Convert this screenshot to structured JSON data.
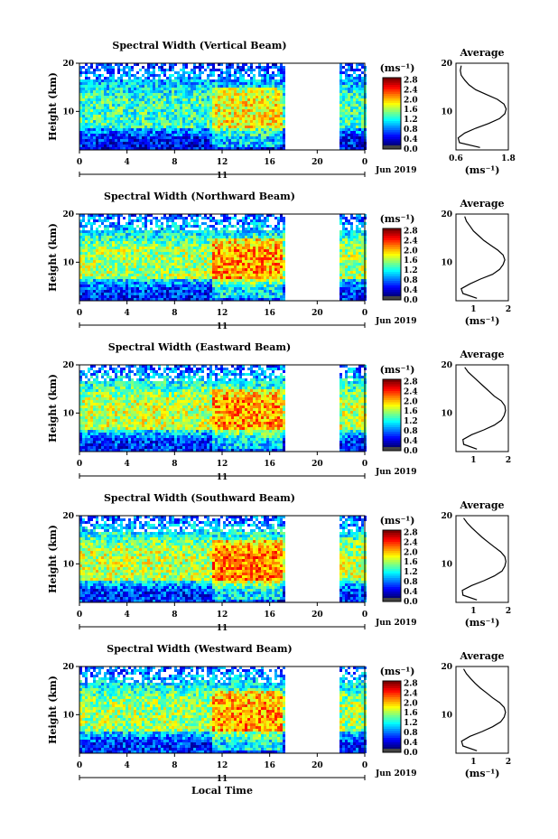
{
  "figure": {
    "date_label": "Jun 2019",
    "day_label": "11",
    "xlabel": "Local Time",
    "ylabel": "Height (km)",
    "unit_label": "(ms⁻¹)",
    "avg_title": "Average",
    "colorbar_ticks": [
      "0.0",
      "0.4",
      "0.8",
      "1.2",
      "1.6",
      "2.0",
      "2.4",
      "2.8"
    ],
    "x_ticks": [
      "0",
      "4",
      "8",
      "12",
      "16",
      "20",
      "0"
    ],
    "y_ticks": [
      "20",
      "10"
    ]
  },
  "chart_data": [
    {
      "type": "heatmap",
      "title": "Spectral Width (Vertical Beam)",
      "x": "Local Time (h)",
      "xlim": [
        0,
        24
      ],
      "ylim": [
        2,
        20
      ],
      "ylabel": "Height (km)",
      "color_range": [
        0,
        3.0
      ],
      "color_unit": "ms⁻¹",
      "data_gap_hours": [
        17.2,
        21.8
      ],
      "levels": {
        "low": 0.4,
        "mid": 1.3,
        "peak": 2.0
      },
      "average_profile": {
        "xlabel": "(ms⁻¹)",
        "xlim": [
          0.6,
          1.8
        ],
        "x_ticks": [
          "0.6",
          "1.8"
        ],
        "points": [
          [
            1.15,
            2.5
          ],
          [
            0.68,
            3.5
          ],
          [
            0.65,
            4.5
          ],
          [
            0.8,
            5.5
          ],
          [
            1.05,
            6.5
          ],
          [
            1.35,
            7.5
          ],
          [
            1.6,
            8.5
          ],
          [
            1.72,
            9.5
          ],
          [
            1.75,
            10.5
          ],
          [
            1.7,
            11.5
          ],
          [
            1.55,
            12.5
          ],
          [
            1.3,
            13.5
          ],
          [
            1.05,
            14.5
          ],
          [
            0.9,
            15.5
          ],
          [
            0.8,
            16.5
          ],
          [
            0.72,
            17.5
          ],
          [
            0.7,
            18.5
          ],
          [
            0.72,
            19.5
          ]
        ]
      }
    },
    {
      "type": "heatmap",
      "title": "Spectral Width (Northward Beam)",
      "x": "Local Time (h)",
      "xlim": [
        0,
        24
      ],
      "ylim": [
        2,
        20
      ],
      "ylabel": "Height (km)",
      "color_range": [
        0,
        3.0
      ],
      "color_unit": "ms⁻¹",
      "data_gap_hours": [
        17.2,
        21.8
      ],
      "levels": {
        "low": 0.5,
        "mid": 1.6,
        "peak": 2.3
      },
      "average_profile": {
        "xlabel": "(ms⁻¹)",
        "xlim": [
          0.5,
          2.0
        ],
        "x_ticks": [
          "1",
          "2"
        ],
        "points": [
          [
            1.1,
            2.5
          ],
          [
            0.7,
            3.5
          ],
          [
            0.65,
            4.5
          ],
          [
            0.9,
            5.5
          ],
          [
            1.2,
            6.5
          ],
          [
            1.55,
            7.5
          ],
          [
            1.75,
            8.5
          ],
          [
            1.85,
            9.5
          ],
          [
            1.9,
            10.5
          ],
          [
            1.85,
            11.5
          ],
          [
            1.7,
            12.5
          ],
          [
            1.5,
            13.5
          ],
          [
            1.3,
            14.5
          ],
          [
            1.15,
            15.5
          ],
          [
            1.0,
            16.5
          ],
          [
            0.9,
            17.5
          ],
          [
            0.8,
            18.5
          ],
          [
            0.75,
            19.5
          ]
        ]
      }
    },
    {
      "type": "heatmap",
      "title": "Spectral Width (Eastward Beam)",
      "x": "Local Time (h)",
      "xlim": [
        0,
        24
      ],
      "ylim": [
        2,
        20
      ],
      "ylabel": "Height (km)",
      "color_range": [
        0,
        3.0
      ],
      "color_unit": "ms⁻¹",
      "data_gap_hours": [
        17.2,
        21.8
      ],
      "levels": {
        "low": 0.5,
        "mid": 1.7,
        "peak": 2.3
      },
      "average_profile": {
        "xlabel": "",
        "xlim": [
          0.5,
          2.0
        ],
        "x_ticks": [
          "1",
          "2"
        ],
        "points": [
          [
            1.1,
            2.5
          ],
          [
            0.72,
            3.5
          ],
          [
            0.7,
            4.5
          ],
          [
            0.95,
            5.5
          ],
          [
            1.3,
            6.5
          ],
          [
            1.6,
            7.5
          ],
          [
            1.8,
            8.5
          ],
          [
            1.88,
            9.5
          ],
          [
            1.92,
            10.5
          ],
          [
            1.9,
            11.5
          ],
          [
            1.8,
            12.5
          ],
          [
            1.6,
            13.5
          ],
          [
            1.45,
            14.5
          ],
          [
            1.3,
            15.5
          ],
          [
            1.15,
            16.5
          ],
          [
            1.0,
            17.5
          ],
          [
            0.85,
            18.5
          ],
          [
            0.75,
            19.5
          ]
        ]
      }
    },
    {
      "type": "heatmap",
      "title": "Spectral Width (Southward Beam)",
      "x": "Local Time (h)",
      "xlim": [
        0,
        24
      ],
      "ylim": [
        2,
        20
      ],
      "ylabel": "Height (km)",
      "color_range": [
        0,
        3.0
      ],
      "color_unit": "ms⁻¹",
      "data_gap_hours": [
        17.2,
        21.8
      ],
      "levels": {
        "low": 0.5,
        "mid": 1.7,
        "peak": 2.4
      },
      "average_profile": {
        "xlabel": "(ms⁻¹)",
        "xlim": [
          0.5,
          2.0
        ],
        "x_ticks": [
          "1",
          "2"
        ],
        "points": [
          [
            1.1,
            2.5
          ],
          [
            0.7,
            3.5
          ],
          [
            0.68,
            4.5
          ],
          [
            0.95,
            5.5
          ],
          [
            1.3,
            6.5
          ],
          [
            1.6,
            7.5
          ],
          [
            1.82,
            8.5
          ],
          [
            1.9,
            9.5
          ],
          [
            1.93,
            10.5
          ],
          [
            1.9,
            11.5
          ],
          [
            1.78,
            12.5
          ],
          [
            1.6,
            13.5
          ],
          [
            1.42,
            14.5
          ],
          [
            1.25,
            15.5
          ],
          [
            1.1,
            16.5
          ],
          [
            0.95,
            17.5
          ],
          [
            0.82,
            18.5
          ],
          [
            0.72,
            19.5
          ]
        ]
      }
    },
    {
      "type": "heatmap",
      "title": "Spectral Width (Westward Beam)",
      "x": "Local Time (h)",
      "xlim": [
        0,
        24
      ],
      "ylim": [
        2,
        20
      ],
      "ylabel": "Height (km)",
      "color_range": [
        0,
        3.0
      ],
      "color_unit": "ms⁻¹",
      "data_gap_hours": [
        17.2,
        21.8
      ],
      "levels": {
        "low": 0.5,
        "mid": 1.6,
        "peak": 2.3
      },
      "average_profile": {
        "xlabel": "(ms⁻¹)",
        "xlim": [
          0.5,
          2.0
        ],
        "x_ticks": [
          "1",
          "2"
        ],
        "points": [
          [
            1.1,
            2.5
          ],
          [
            0.7,
            3.5
          ],
          [
            0.66,
            4.5
          ],
          [
            0.9,
            5.5
          ],
          [
            1.25,
            6.5
          ],
          [
            1.55,
            7.5
          ],
          [
            1.78,
            8.5
          ],
          [
            1.88,
            9.5
          ],
          [
            1.92,
            10.5
          ],
          [
            1.88,
            11.5
          ],
          [
            1.75,
            12.5
          ],
          [
            1.55,
            13.5
          ],
          [
            1.38,
            14.5
          ],
          [
            1.2,
            15.5
          ],
          [
            1.05,
            16.5
          ],
          [
            0.92,
            17.5
          ],
          [
            0.8,
            18.5
          ],
          [
            0.72,
            19.5
          ]
        ]
      }
    }
  ]
}
